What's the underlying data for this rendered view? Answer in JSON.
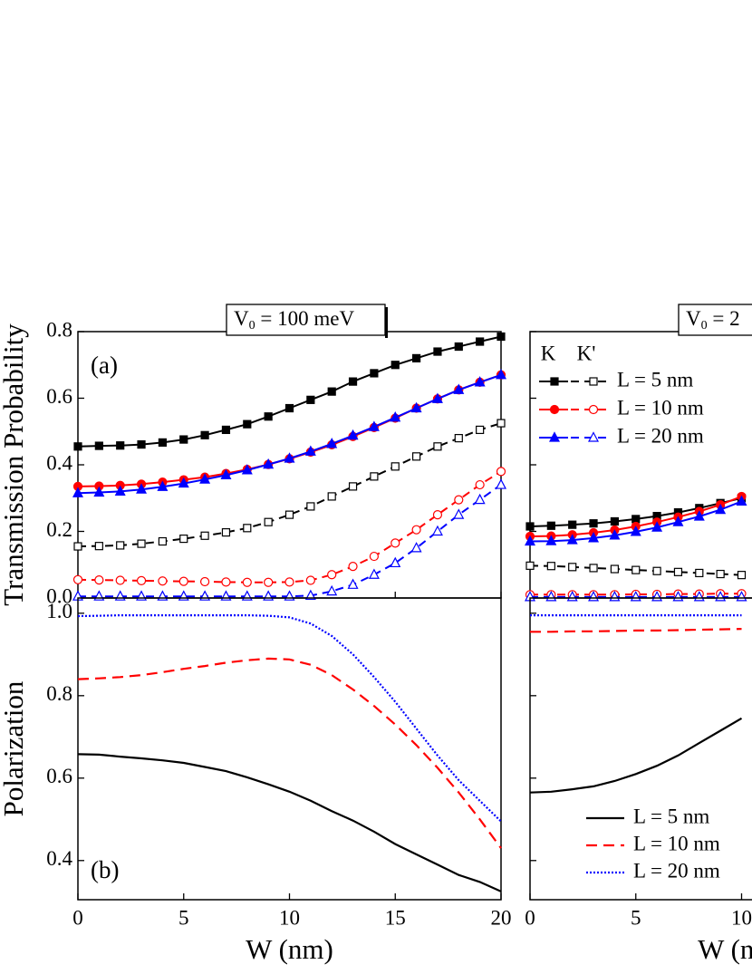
{
  "chart_data": [
    {
      "type": "line",
      "panel_label": "(a)",
      "title": {
        "main": "V",
        "sub": "0",
        "rest": " = 100 meV"
      },
      "ylabel": "Transmission Probability",
      "x": [
        0,
        1,
        2,
        3,
        4,
        5,
        6,
        7,
        8,
        9,
        10,
        11,
        12,
        13,
        14,
        15,
        16,
        17,
        18,
        19,
        20
      ],
      "xlim": [
        0,
        20
      ],
      "xticks": [
        0,
        5,
        10,
        15,
        20
      ],
      "show_xtick_labels": false,
      "ylim": [
        0,
        0.8
      ],
      "yticks": [
        {
          "value": 0,
          "label": "0.0"
        },
        0.2,
        0.4,
        0.6,
        0.8
      ],
      "show_ytick_labels": true,
      "series": [
        {
          "color": "#000000",
          "marker": "square",
          "values": [
            0.455,
            0.457,
            0.458,
            0.461,
            0.467,
            0.476,
            0.489,
            0.505,
            0.522,
            0.545,
            0.57,
            0.595,
            0.62,
            0.65,
            0.675,
            0.7,
            0.72,
            0.74,
            0.755,
            0.77,
            0.785
          ],
          "values_kprime": [
            0.155,
            0.156,
            0.158,
            0.163,
            0.17,
            0.178,
            0.187,
            0.197,
            0.21,
            0.228,
            0.25,
            0.275,
            0.305,
            0.335,
            0.365,
            0.395,
            0.425,
            0.455,
            0.48,
            0.505,
            0.525
          ]
        },
        {
          "color": "#ff0000",
          "marker": "circle",
          "values": [
            0.335,
            0.336,
            0.338,
            0.342,
            0.348,
            0.355,
            0.363,
            0.374,
            0.386,
            0.401,
            0.418,
            0.438,
            0.46,
            0.485,
            0.512,
            0.54,
            0.57,
            0.598,
            0.625,
            0.648,
            0.67
          ],
          "values_kprime": [
            0.055,
            0.054,
            0.053,
            0.052,
            0.051,
            0.05,
            0.049,
            0.048,
            0.047,
            0.047,
            0.048,
            0.053,
            0.07,
            0.095,
            0.125,
            0.165,
            0.205,
            0.25,
            0.295,
            0.34,
            0.38
          ]
        },
        {
          "color": "#0000ff",
          "marker": "triangle",
          "values": [
            0.315,
            0.317,
            0.32,
            0.326,
            0.334,
            0.344,
            0.356,
            0.369,
            0.384,
            0.401,
            0.419,
            0.44,
            0.463,
            0.488,
            0.514,
            0.542,
            0.57,
            0.598,
            0.625,
            0.648,
            0.67
          ],
          "values_kprime": [
            0.005,
            0.005,
            0.005,
            0.005,
            0.005,
            0.005,
            0.005,
            0.005,
            0.005,
            0.005,
            0.005,
            0.007,
            0.02,
            0.04,
            0.07,
            0.105,
            0.15,
            0.2,
            0.25,
            0.295,
            0.34
          ]
        }
      ]
    },
    {
      "type": "line",
      "panel_label": "(b)",
      "ylabel": "Polarization",
      "xlabel": "W (nm)",
      "x": [
        0,
        1,
        2,
        3,
        4,
        5,
        6,
        7,
        8,
        9,
        10,
        11,
        12,
        13,
        14,
        15,
        16,
        17,
        18,
        19,
        20
      ],
      "xlim": [
        0,
        20
      ],
      "xticks": [
        0,
        5,
        10,
        15,
        20
      ],
      "show_xtick_labels": true,
      "ylim": [
        0.305,
        1.037
      ],
      "yticks": [
        0.4,
        0.6,
        0.8,
        {
          "value": 1,
          "label": "1.0"
        }
      ],
      "show_ytick_labels": true,
      "series": [
        {
          "color": "#000000",
          "dash": "solid",
          "values": [
            0.658,
            0.657,
            0.652,
            0.648,
            0.643,
            0.637,
            0.627,
            0.617,
            0.602,
            0.585,
            0.567,
            0.545,
            0.52,
            0.497,
            0.47,
            0.44,
            0.415,
            0.39,
            0.365,
            0.348,
            0.325
          ]
        },
        {
          "color": "#ff0000",
          "dash": "dashed",
          "values": [
            0.84,
            0.842,
            0.845,
            0.85,
            0.857,
            0.865,
            0.872,
            0.88,
            0.886,
            0.89,
            0.888,
            0.875,
            0.85,
            0.815,
            0.775,
            0.73,
            0.68,
            0.625,
            0.565,
            0.5,
            0.43
          ]
        },
        {
          "color": "#0000ff",
          "dash": "dotted",
          "values": [
            0.993,
            0.994,
            0.995,
            0.995,
            0.995,
            0.995,
            0.995,
            0.995,
            0.995,
            0.994,
            0.99,
            0.975,
            0.945,
            0.9,
            0.845,
            0.785,
            0.72,
            0.655,
            0.595,
            0.545,
            0.495
          ]
        }
      ]
    },
    {
      "type": "line",
      "title": {
        "main": "V",
        "sub": "0",
        "rest": " = 2"
      },
      "legend_header": [
        "K",
        "K'"
      ],
      "x": [
        0,
        1,
        2,
        3,
        4,
        5,
        6,
        7,
        8,
        9,
        10
      ],
      "xlim": [
        0,
        20
      ],
      "xticks": [
        0,
        5,
        10
      ],
      "show_xtick_labels": false,
      "ylim": [
        0,
        0.8
      ],
      "yticks": [
        0,
        0.2,
        0.4,
        0.6,
        0.8
      ],
      "show_ytick_labels": false,
      "series": [
        {
          "name": "L = 5 nm",
          "color": "#000000",
          "marker": "square",
          "values": [
            0.215,
            0.217,
            0.22,
            0.224,
            0.23,
            0.237,
            0.246,
            0.257,
            0.27,
            0.285,
            0.3
          ],
          "values_kprime": [
            0.097,
            0.096,
            0.093,
            0.09,
            0.087,
            0.084,
            0.081,
            0.078,
            0.075,
            0.072,
            0.069
          ]
        },
        {
          "name": "L = 10 nm",
          "color": "#ff0000",
          "marker": "circle",
          "values": [
            0.185,
            0.186,
            0.19,
            0.196,
            0.204,
            0.215,
            0.228,
            0.243,
            0.26,
            0.28,
            0.305
          ],
          "values_kprime": [
            0.01,
            0.01,
            0.01,
            0.01,
            0.01,
            0.011,
            0.011,
            0.012,
            0.012,
            0.013,
            0.013
          ]
        },
        {
          "name": "L = 20 nm",
          "color": "#0000ff",
          "marker": "triangle",
          "values": [
            0.17,
            0.171,
            0.174,
            0.18,
            0.188,
            0.199,
            0.212,
            0.228,
            0.245,
            0.265,
            0.29
          ],
          "values_kprime": [
            0.003,
            0.003,
            0.003,
            0.003,
            0.003,
            0.003,
            0.003,
            0.003,
            0.003,
            0.003,
            0.003
          ]
        }
      ]
    },
    {
      "type": "line",
      "xlabel": "W (nm)",
      "x": [
        0,
        1,
        2,
        3,
        4,
        5,
        6,
        7,
        8,
        9,
        10
      ],
      "xlim": [
        0,
        20
      ],
      "xticks": [
        0,
        5,
        10
      ],
      "show_xtick_labels": true,
      "ylim": [
        0.305,
        1.037
      ],
      "yticks": [
        0.4,
        0.6,
        0.8,
        1
      ],
      "show_ytick_labels": false,
      "series": [
        {
          "name": "L = 5 nm",
          "color": "#000000",
          "dash": "solid",
          "values": [
            0.565,
            0.567,
            0.573,
            0.58,
            0.593,
            0.61,
            0.63,
            0.655,
            0.685,
            0.715,
            0.745
          ]
        },
        {
          "name": "L = 10 nm",
          "color": "#ff0000",
          "dash": "dashed",
          "values": [
            0.955,
            0.955,
            0.956,
            0.956,
            0.957,
            0.958,
            0.958,
            0.959,
            0.96,
            0.961,
            0.962
          ]
        },
        {
          "name": "L = 20 nm",
          "color": "#0000ff",
          "dash": "dotted",
          "values": [
            0.995,
            0.995,
            0.995,
            0.995,
            0.995,
            0.995,
            0.995,
            0.995,
            0.995,
            0.995,
            0.995
          ]
        }
      ]
    }
  ]
}
